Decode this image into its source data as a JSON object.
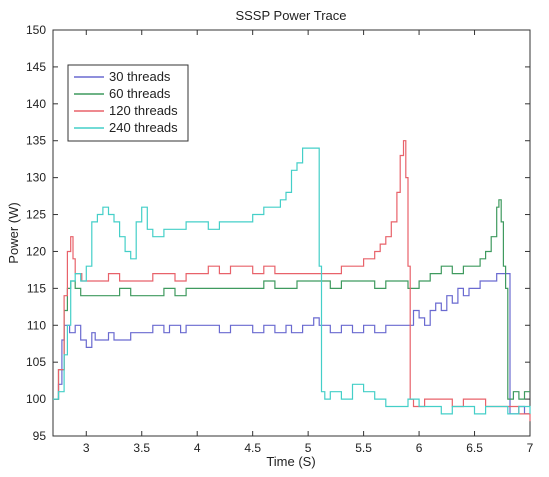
{
  "chart_data": {
    "type": "line",
    "title": "SSSP Power Trace",
    "xlabel": "Time (S)",
    "ylabel": "Power (W)",
    "xlim": [
      2.7,
      7
    ],
    "ylim": [
      95,
      150
    ],
    "xticks": [
      3,
      3.5,
      4,
      4.5,
      5,
      5.5,
      6,
      6.5,
      7
    ],
    "yticks": [
      95,
      100,
      105,
      110,
      115,
      120,
      125,
      130,
      135,
      140,
      145,
      150
    ],
    "grid": false,
    "legend_position": "top-left",
    "series": [
      {
        "name": "30 threads",
        "color": "#6a6ad0",
        "x": [
          2.7,
          2.75,
          2.78,
          2.8,
          2.82,
          2.85,
          2.9,
          2.95,
          3.0,
          3.05,
          3.08,
          3.12,
          3.15,
          3.2,
          3.25,
          3.3,
          3.35,
          3.4,
          3.5,
          3.6,
          3.7,
          3.75,
          3.8,
          3.85,
          3.9,
          3.95,
          4.0,
          4.1,
          4.2,
          4.3,
          4.4,
          4.5,
          4.6,
          4.7,
          4.75,
          4.8,
          4.85,
          4.9,
          4.95,
          5.0,
          5.05,
          5.1,
          5.15,
          5.2,
          5.3,
          5.4,
          5.5,
          5.6,
          5.7,
          5.8,
          5.9,
          5.95,
          6.0,
          6.05,
          6.1,
          6.15,
          6.2,
          6.25,
          6.3,
          6.35,
          6.4,
          6.45,
          6.5,
          6.55,
          6.6,
          6.65,
          6.7,
          6.75,
          6.78,
          6.8,
          6.82,
          6.85,
          6.9,
          6.95,
          7.0
        ],
        "values": [
          100,
          102,
          108,
          110,
          110,
          109,
          110,
          108,
          107,
          109,
          108,
          108,
          108,
          109,
          108,
          108,
          108,
          109,
          109,
          110,
          109,
          110,
          110,
          109,
          110,
          110,
          110,
          110,
          109,
          110,
          110,
          109,
          110,
          109,
          109,
          110,
          109,
          109,
          110,
          110,
          111,
          110,
          110,
          109,
          110,
          109,
          110,
          109,
          110,
          110,
          110,
          112,
          111,
          110,
          112,
          113,
          112,
          114,
          113,
          115,
          114,
          115,
          115,
          116,
          116,
          116,
          117,
          117,
          117,
          117,
          98,
          98,
          99,
          98,
          98
        ]
      },
      {
        "name": "60 threads",
        "color": "#3f9a5f",
        "x": [
          2.7,
          2.75,
          2.8,
          2.83,
          2.86,
          2.9,
          2.95,
          3.0,
          3.1,
          3.2,
          3.3,
          3.4,
          3.5,
          3.6,
          3.7,
          3.8,
          3.9,
          4.0,
          4.1,
          4.2,
          4.3,
          4.4,
          4.5,
          4.6,
          4.7,
          4.8,
          4.9,
          5.0,
          5.1,
          5.2,
          5.3,
          5.4,
          5.5,
          5.6,
          5.7,
          5.8,
          5.9,
          6.0,
          6.1,
          6.2,
          6.3,
          6.4,
          6.5,
          6.55,
          6.6,
          6.65,
          6.7,
          6.72,
          6.74,
          6.76,
          6.78,
          6.8,
          6.85,
          6.9,
          6.95,
          7.0
        ],
        "values": [
          100,
          104,
          112,
          115,
          116,
          115,
          114,
          114,
          114,
          114,
          115,
          114,
          114,
          114,
          115,
          114,
          115,
          115,
          115,
          115,
          115,
          115,
          115,
          116,
          115,
          115,
          116,
          116,
          116,
          115,
          116,
          116,
          116,
          115,
          116,
          116,
          115,
          116,
          117,
          118,
          117,
          118,
          118,
          119,
          120,
          122,
          126,
          127,
          124,
          118,
          115,
          100,
          101,
          100,
          101,
          101
        ]
      },
      {
        "name": "120 threads",
        "color": "#e8626a",
        "x": [
          2.7,
          2.75,
          2.8,
          2.83,
          2.86,
          2.88,
          2.9,
          2.93,
          2.96,
          3.0,
          3.1,
          3.2,
          3.3,
          3.4,
          3.5,
          3.6,
          3.7,
          3.8,
          3.9,
          4.0,
          4.1,
          4.2,
          4.3,
          4.4,
          4.5,
          4.6,
          4.7,
          4.8,
          4.9,
          5.0,
          5.1,
          5.2,
          5.3,
          5.4,
          5.5,
          5.6,
          5.65,
          5.7,
          5.75,
          5.8,
          5.83,
          5.86,
          5.88,
          5.9,
          5.92,
          5.95,
          6.0,
          6.05,
          6.1,
          6.2,
          6.3,
          6.4,
          6.5,
          6.6,
          6.7,
          6.8,
          6.9,
          7.0
        ],
        "values": [
          100,
          104,
          114,
          120,
          122,
          119,
          117,
          117,
          116,
          116,
          116,
          117,
          116,
          116,
          116,
          117,
          117,
          116,
          117,
          117,
          118,
          117,
          118,
          118,
          117,
          118,
          117,
          117,
          117,
          117,
          117,
          117,
          118,
          118,
          119,
          120,
          121,
          122,
          124,
          128,
          133,
          135,
          130,
          118,
          100,
          99,
          99,
          100,
          100,
          100,
          99,
          100,
          100,
          99,
          99,
          99,
          98,
          97
        ]
      },
      {
        "name": "240 threads",
        "color": "#44cfc8",
        "x": [
          2.7,
          2.75,
          2.8,
          2.83,
          2.86,
          2.9,
          2.95,
          3.0,
          3.05,
          3.1,
          3.15,
          3.2,
          3.25,
          3.3,
          3.35,
          3.4,
          3.45,
          3.5,
          3.55,
          3.6,
          3.7,
          3.8,
          3.9,
          4.0,
          4.1,
          4.2,
          4.3,
          4.4,
          4.5,
          4.6,
          4.7,
          4.75,
          4.8,
          4.85,
          4.9,
          4.95,
          5.0,
          5.05,
          5.08,
          5.1,
          5.12,
          5.15,
          5.2,
          5.3,
          5.4,
          5.5,
          5.6,
          5.7,
          5.8,
          5.9,
          6.0,
          6.1,
          6.2,
          6.3,
          6.4,
          6.5,
          6.6,
          6.7,
          6.8,
          6.9,
          7.0
        ],
        "values": [
          100,
          101,
          106,
          110,
          116,
          117,
          116,
          118,
          124,
          125,
          126,
          125,
          124,
          122,
          120,
          119,
          124,
          126,
          123,
          122,
          123,
          123,
          124,
          124,
          123,
          124,
          124,
          124,
          125,
          126,
          126,
          127,
          128,
          131,
          132,
          134,
          134,
          134,
          134,
          118,
          101,
          100,
          101,
          100,
          102,
          101,
          100,
          99,
          99,
          100,
          99,
          99,
          98,
          99,
          99,
          98,
          99,
          99,
          98,
          99,
          98
        ]
      }
    ]
  }
}
